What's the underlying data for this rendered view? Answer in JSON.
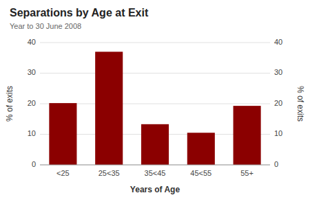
{
  "chart_data": {
    "type": "bar",
    "title": "Separations by Age at Exit",
    "subtitle": "Year to 30 June 2008",
    "categories": [
      "<25",
      "25<35",
      "35<45",
      "45<55",
      "55+"
    ],
    "values": [
      20.2,
      37.0,
      13.3,
      10.5,
      19.3
    ],
    "color": "#8B0000",
    "xlabel": "Years of Age",
    "ylabel": "% of exits",
    "y2label": "% of exits",
    "ylim": [
      0,
      40
    ],
    "yticks": [
      0,
      10,
      20,
      30,
      40
    ],
    "y2lim": [
      0,
      40
    ],
    "y2ticks": [
      0,
      10,
      20,
      30,
      40
    ],
    "grid": true
  }
}
